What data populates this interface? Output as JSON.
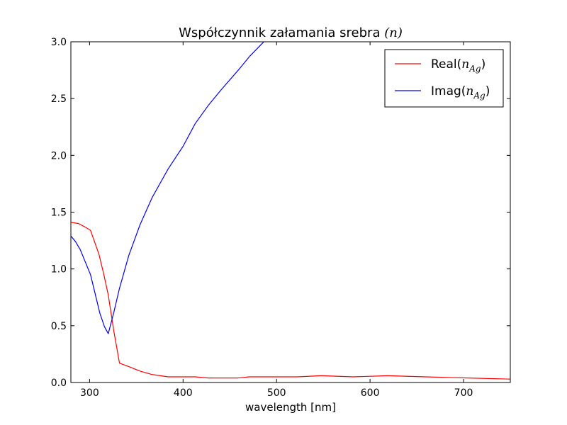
{
  "chart_data": {
    "type": "line",
    "title_text": "Współczynnik załamania srebra",
    "title_math": "(n)",
    "xlabel": "wavelength [nm]",
    "ylabel": "",
    "xlim": [
      280,
      750
    ],
    "ylim": [
      0.0,
      3.0
    ],
    "x_ticks": [
      300,
      400,
      500,
      600,
      700
    ],
    "y_ticks": [
      "0.0",
      "0.5",
      "1.0",
      "1.5",
      "2.0",
      "2.5",
      "3.0"
    ],
    "grid": false,
    "legend_position": "top-right",
    "series": [
      {
        "name": "Real(n_Ag)",
        "legend_prefix": "Real(",
        "legend_math": "n",
        "legend_sub": "Ag",
        "legend_suffix": ")",
        "color": "#ff0000",
        "x": [
          280,
          288,
          295,
          301,
          310,
          315,
          320,
          326,
          332,
          342,
          354,
          367,
          384,
          400,
          413,
          427,
          441,
          459,
          471,
          484,
          500,
          522,
          548,
          582,
          619,
          659,
          704,
          750
        ],
        "y": [
          1.41,
          1.4,
          1.37,
          1.34,
          1.13,
          0.96,
          0.77,
          0.45,
          0.17,
          0.14,
          0.1,
          0.07,
          0.05,
          0.05,
          0.05,
          0.04,
          0.04,
          0.04,
          0.05,
          0.05,
          0.05,
          0.05,
          0.06,
          0.05,
          0.06,
          0.05,
          0.04,
          0.03
        ]
      },
      {
        "name": "Imag(n_Ag)",
        "legend_prefix": "Imag(",
        "legend_math": "n",
        "legend_sub": "Ag",
        "legend_suffix": ")",
        "color": "#0000ff",
        "x": [
          280,
          285,
          290,
          295,
          301,
          306,
          311,
          316,
          320,
          326,
          332,
          342,
          354,
          367,
          384,
          400,
          413,
          427,
          441,
          459,
          471,
          484,
          490
        ],
        "y": [
          1.29,
          1.24,
          1.17,
          1.07,
          0.95,
          0.78,
          0.61,
          0.49,
          0.43,
          0.62,
          0.83,
          1.12,
          1.39,
          1.63,
          1.88,
          2.08,
          2.28,
          2.44,
          2.58,
          2.75,
          2.87,
          2.98,
          3.03
        ]
      }
    ]
  }
}
